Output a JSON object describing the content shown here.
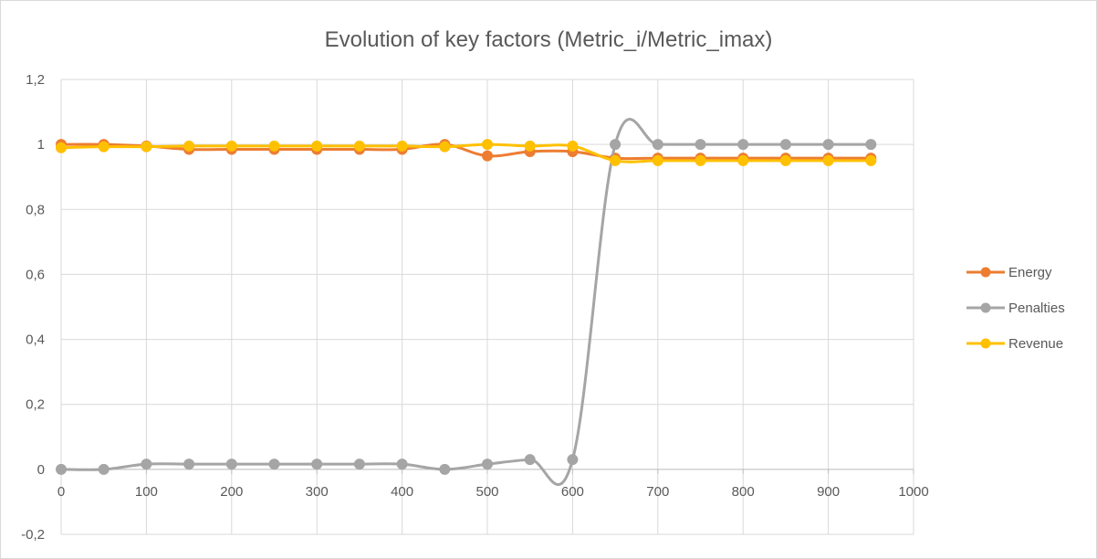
{
  "chart_data": {
    "type": "line",
    "title": "Evolution of key factors (Metric_i/Metric_imax)",
    "xlabel": "",
    "ylabel": "",
    "xlim": [
      0,
      1000
    ],
    "ylim": [
      -0.2,
      1.2
    ],
    "x_ticks": [
      "0",
      "100",
      "200",
      "300",
      "400",
      "500",
      "600",
      "700",
      "800",
      "900",
      "1000"
    ],
    "y_ticks": [
      "-0,2",
      "0",
      "0,2",
      "0,4",
      "0,6",
      "0,8",
      "1",
      "1,2"
    ],
    "grid": true,
    "legend_position": "right",
    "x": [
      0,
      50,
      100,
      150,
      200,
      250,
      300,
      350,
      400,
      450,
      500,
      550,
      600,
      650,
      700,
      750,
      800,
      850,
      900,
      950
    ],
    "series": [
      {
        "name": "Energy",
        "color": "#ed7d31",
        "values": [
          1.0,
          1.0,
          0.995,
          0.985,
          0.985,
          0.985,
          0.985,
          0.985,
          0.985,
          1.0,
          0.965,
          0.978,
          0.978,
          0.958,
          0.958,
          0.958,
          0.958,
          0.958,
          0.958,
          0.958
        ]
      },
      {
        "name": "Penalties",
        "color": "#a5a5a5",
        "values": [
          0.0,
          0.0,
          0.016,
          0.016,
          0.016,
          0.016,
          0.016,
          0.016,
          0.016,
          0.0,
          0.016,
          0.03,
          0.03,
          1.0,
          1.0,
          1.0,
          1.0,
          1.0,
          1.0,
          1.0
        ]
      },
      {
        "name": "Revenue",
        "color": "#ffc000",
        "values": [
          0.99,
          0.993,
          0.993,
          0.995,
          0.995,
          0.995,
          0.995,
          0.995,
          0.995,
          0.993,
          1.0,
          0.995,
          0.995,
          0.95,
          0.95,
          0.95,
          0.95,
          0.95,
          0.95,
          0.95
        ]
      }
    ]
  }
}
